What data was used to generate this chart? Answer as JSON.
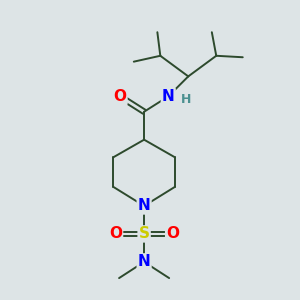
{
  "background_color": "#dde4e6",
  "bond_color": "#2d4a2d",
  "atom_colors": {
    "O": "#ff0000",
    "N": "#0000ff",
    "S": "#cccc00",
    "H": "#4a9090",
    "C": "#2d4a2d"
  },
  "font_size_atoms": 11,
  "font_size_small": 9,
  "figsize": [
    3.0,
    3.0
  ],
  "dpi": 100
}
